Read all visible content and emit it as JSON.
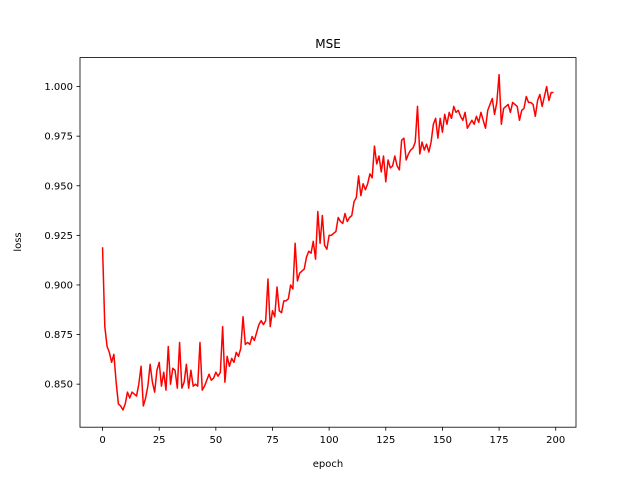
{
  "chart_data": {
    "type": "line",
    "title": "MSE",
    "xlabel": "epoch",
    "ylabel": "loss",
    "x": [
      0,
      1,
      2,
      3,
      4,
      5,
      6,
      7,
      8,
      9,
      10,
      11,
      12,
      13,
      14,
      15,
      16,
      17,
      18,
      19,
      20,
      21,
      22,
      23,
      24,
      25,
      26,
      27,
      28,
      29,
      30,
      31,
      32,
      33,
      34,
      35,
      36,
      37,
      38,
      39,
      40,
      41,
      42,
      43,
      44,
      45,
      46,
      47,
      48,
      49,
      50,
      51,
      52,
      53,
      54,
      55,
      56,
      57,
      58,
      59,
      60,
      61,
      62,
      63,
      64,
      65,
      66,
      67,
      68,
      69,
      70,
      71,
      72,
      73,
      74,
      75,
      76,
      77,
      78,
      79,
      80,
      81,
      82,
      83,
      84,
      85,
      86,
      87,
      88,
      89,
      90,
      91,
      92,
      93,
      94,
      95,
      96,
      97,
      98,
      99,
      100,
      101,
      102,
      103,
      104,
      105,
      106,
      107,
      108,
      109,
      110,
      111,
      112,
      113,
      114,
      115,
      116,
      117,
      118,
      119,
      120,
      121,
      122,
      123,
      124,
      125,
      126,
      127,
      128,
      129,
      130,
      131,
      132,
      133,
      134,
      135,
      136,
      137,
      138,
      139,
      140,
      141,
      142,
      143,
      144,
      145,
      146,
      147,
      148,
      149,
      150,
      151,
      152,
      153,
      154,
      155,
      156,
      157,
      158,
      159,
      160,
      161,
      162,
      163,
      164,
      165,
      166,
      167,
      168,
      169,
      170,
      171,
      172,
      173,
      174,
      175,
      176,
      177,
      178,
      179,
      180,
      181,
      182,
      183,
      184,
      185,
      186,
      187,
      188,
      189,
      190,
      191,
      192,
      193,
      194,
      195,
      196,
      197,
      198,
      199
    ],
    "series": [
      {
        "color": "#ff0000",
        "values": [
          0.919,
          0.879,
          0.869,
          0.866,
          0.861,
          0.865,
          0.851,
          0.84,
          0.839,
          0.837,
          0.84,
          0.846,
          0.843,
          0.846,
          0.845,
          0.844,
          0.85,
          0.859,
          0.839,
          0.843,
          0.849,
          0.86,
          0.851,
          0.846,
          0.857,
          0.861,
          0.849,
          0.856,
          0.847,
          0.869,
          0.85,
          0.858,
          0.857,
          0.848,
          0.871,
          0.848,
          0.851,
          0.86,
          0.848,
          0.857,
          0.849,
          0.85,
          0.849,
          0.871,
          0.847,
          0.849,
          0.852,
          0.855,
          0.852,
          0.853,
          0.856,
          0.854,
          0.856,
          0.879,
          0.851,
          0.864,
          0.859,
          0.863,
          0.861,
          0.866,
          0.864,
          0.868,
          0.884,
          0.87,
          0.871,
          0.87,
          0.874,
          0.872,
          0.876,
          0.88,
          0.882,
          0.88,
          0.882,
          0.903,
          0.879,
          0.887,
          0.884,
          0.899,
          0.887,
          0.886,
          0.892,
          0.892,
          0.893,
          0.9,
          0.898,
          0.921,
          0.902,
          0.906,
          0.907,
          0.908,
          0.914,
          0.917,
          0.916,
          0.922,
          0.913,
          0.937,
          0.921,
          0.935,
          0.92,
          0.918,
          0.925,
          0.925,
          0.926,
          0.927,
          0.934,
          0.932,
          0.931,
          0.936,
          0.932,
          0.934,
          0.935,
          0.942,
          0.944,
          0.955,
          0.945,
          0.951,
          0.948,
          0.951,
          0.956,
          0.954,
          0.97,
          0.961,
          0.965,
          0.957,
          0.965,
          0.952,
          0.963,
          0.959,
          0.96,
          0.965,
          0.96,
          0.958,
          0.973,
          0.974,
          0.963,
          0.966,
          0.968,
          0.969,
          0.972,
          0.99,
          0.966,
          0.972,
          0.968,
          0.971,
          0.967,
          0.972,
          0.981,
          0.984,
          0.974,
          0.984,
          0.977,
          0.986,
          0.981,
          0.987,
          0.984,
          0.99,
          0.987,
          0.988,
          0.985,
          0.983,
          0.987,
          0.979,
          0.981,
          0.983,
          0.981,
          0.985,
          0.982,
          0.987,
          0.983,
          0.979,
          0.988,
          0.991,
          0.994,
          0.986,
          0.992,
          1.006,
          0.981,
          0.989,
          0.99,
          0.991,
          0.987,
          0.992,
          0.991,
          0.99,
          0.983,
          0.988,
          0.989,
          0.995,
          0.992,
          0.992,
          0.991,
          0.985,
          0.993,
          0.996,
          0.99,
          0.995,
          1.0,
          0.993,
          0.997,
          0.997
        ]
      }
    ],
    "xlim": [
      -9.95,
      208.95
    ],
    "xticks": [
      0,
      25,
      50,
      75,
      100,
      125,
      150,
      175,
      200
    ],
    "ylim": [
      0.8283,
      1.0146
    ],
    "yticks": [
      {
        "value": 0.85,
        "label": "0.850"
      },
      0.875,
      {
        "value": 0.9,
        "label": "0.900"
      },
      0.925,
      {
        "value": 0.95,
        "label": "0.950"
      },
      0.975,
      {
        "value": 1,
        "label": "1.000"
      }
    ]
  }
}
